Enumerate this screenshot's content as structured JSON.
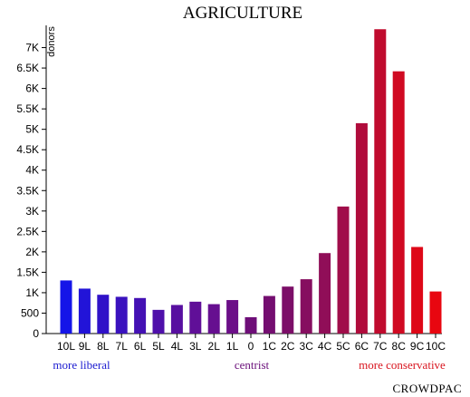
{
  "chart_data": {
    "type": "bar",
    "title": "AGRICULTURE",
    "ylabel": "donors",
    "xlabel": "",
    "ylim": [
      0,
      7500
    ],
    "yticks": [
      0,
      500,
      1000,
      1500,
      2000,
      2500,
      3000,
      3500,
      4000,
      4500,
      5000,
      5500,
      6000,
      6500,
      7000
    ],
    "ytick_labels": [
      "0",
      "500",
      "1K",
      "1.5K",
      "2K",
      "2.5K",
      "3K",
      "3.5K",
      "4K",
      "4.5K",
      "5K",
      "5.5K",
      "6K",
      "6.5K",
      "7K"
    ],
    "categories": [
      "10L",
      "9L",
      "8L",
      "7L",
      "6L",
      "5L",
      "4L",
      "3L",
      "2L",
      "1L",
      "0",
      "1C",
      "2C",
      "3C",
      "4C",
      "5C",
      "6C",
      "7C",
      "8C",
      "9C",
      "10C"
    ],
    "values": [
      1300,
      1100,
      950,
      900,
      870,
      580,
      700,
      780,
      720,
      820,
      400,
      920,
      1150,
      1330,
      1970,
      3110,
      5150,
      7450,
      6420,
      2120,
      1030
    ],
    "colors": [
      "#1515e8",
      "#2214d8",
      "#3012c8",
      "#3a12be",
      "#4411b4",
      "#4f10aa",
      "#580fa0",
      "#600f98",
      "#660f90",
      "#6c0f88",
      "#6e0e78",
      "#740e70",
      "#7c0e68",
      "#860e60",
      "#900e58",
      "#a00d4a",
      "#b00c3c",
      "#c00b2e",
      "#d00a22",
      "#de0818",
      "#e80610"
    ],
    "region_labels": [
      {
        "text": "more liberal",
        "color": "#1c1cd0"
      },
      {
        "text": "centrist",
        "color": "#6a0f7a"
      },
      {
        "text": "more conservative",
        "color": "#d8141e"
      }
    ]
  },
  "brand": "CROWDPAC"
}
